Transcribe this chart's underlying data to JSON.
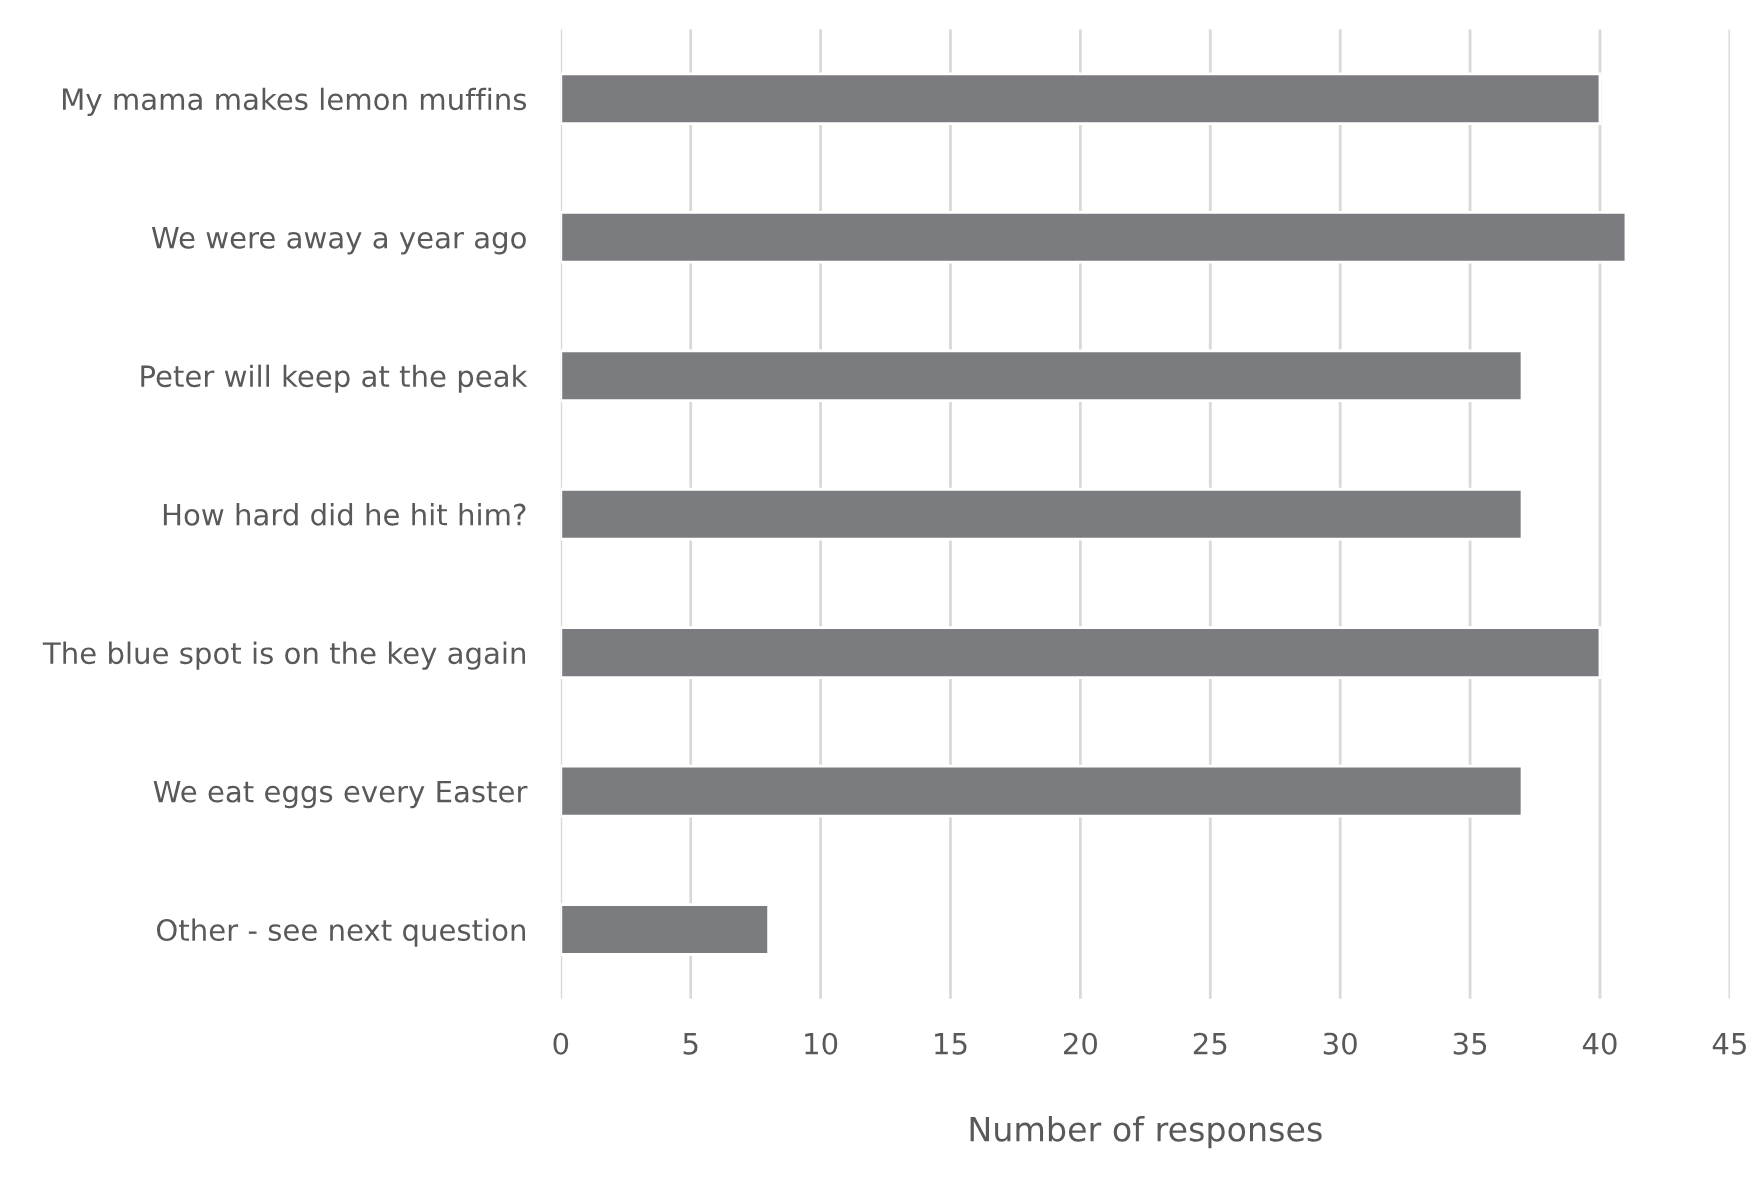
{
  "chart_data": {
    "type": "bar",
    "orientation": "horizontal",
    "xlabel": "Number of responses",
    "categories": [
      "My mama makes lemon muffins",
      "We were away a year ago",
      "Peter will keep at the peak",
      "How hard did he hit him?",
      "The blue spot is on the key again",
      "We eat eggs every Easter",
      "Other - see next question"
    ],
    "values": [
      40,
      41,
      37,
      37,
      40,
      37,
      8
    ],
    "color": "#7b7c80",
    "xlim": [
      0,
      45
    ],
    "xticks": [
      0,
      5,
      10,
      15,
      20,
      25,
      30,
      35,
      40,
      45
    ],
    "grid": "x",
    "legend": false
  }
}
